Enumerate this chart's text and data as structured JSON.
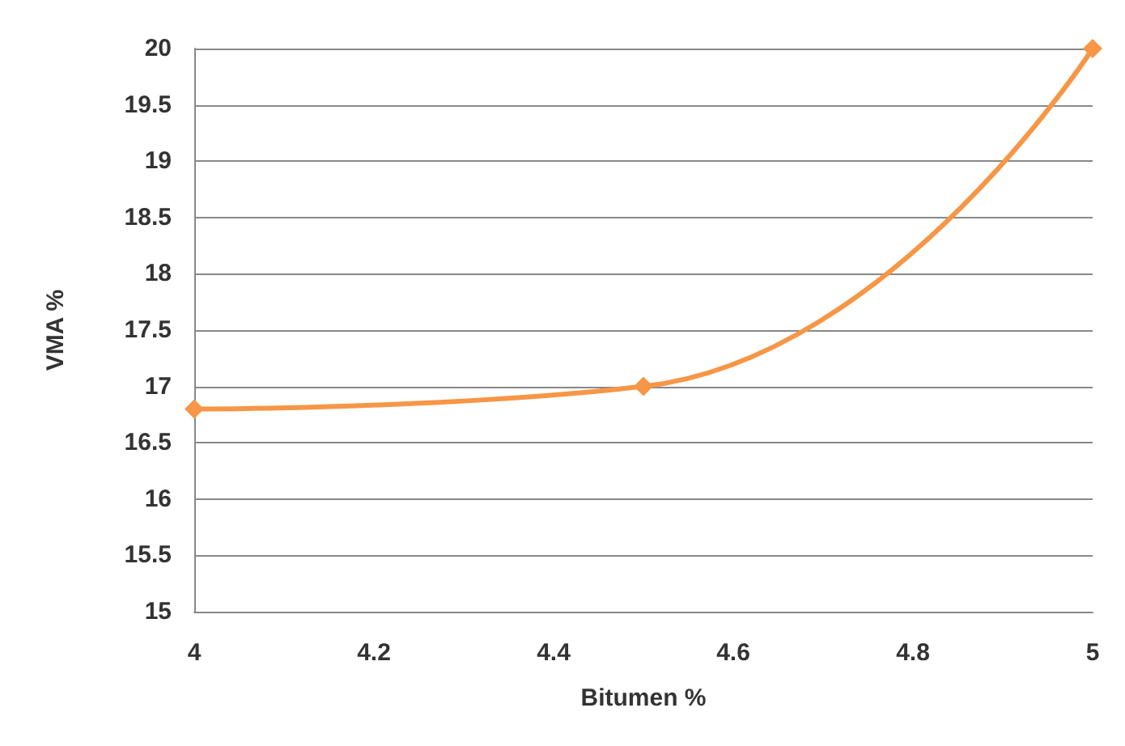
{
  "chart_data": {
    "type": "line",
    "xlabel": "Bitumen %",
    "ylabel": "VMA %",
    "x": [
      4,
      4.5,
      5
    ],
    "series": [
      {
        "color": "#f79646",
        "values": [
          16.8,
          17,
          20
        ]
      }
    ],
    "xlim": [
      4,
      5
    ],
    "xticks": [
      4,
      4.2,
      4.4,
      4.6,
      4.8,
      5
    ],
    "ylim": [
      15,
      20
    ],
    "yticks": [
      15,
      15.5,
      16,
      16.5,
      17,
      17.5,
      18,
      18.5,
      19,
      19.5,
      20
    ],
    "grid": "y",
    "marker": "diamond",
    "line_style": "solid"
  }
}
